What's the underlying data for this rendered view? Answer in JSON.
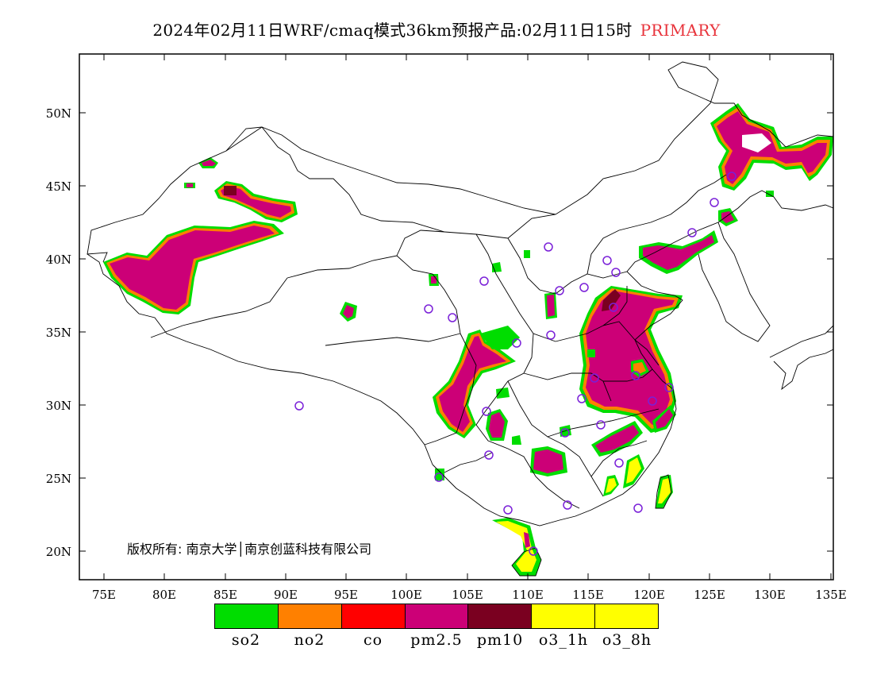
{
  "header": {
    "title": "2024年02月11日WRF/cmaq模式36km预报产品:02月11日15时",
    "primary_label": "PRIMARY"
  },
  "map": {
    "copyright": "版权所有: 南京大学│南京创蓝科技有限公司",
    "lon_ticks": [
      "75E",
      "80E",
      "85E",
      "90E",
      "95E",
      "100E",
      "105E",
      "110E",
      "115E",
      "120E",
      "125E",
      "130E",
      "135E"
    ],
    "lat_ticks": [
      "20N",
      "25N",
      "30N",
      "35N",
      "40N",
      "45N",
      "50N"
    ],
    "colors": {
      "frame": "#000000",
      "boundary": "#000000",
      "pollution_fill": "#cc0077",
      "pollution_edge_orange": "#ff8000",
      "pollution_edge_green": "#00dd00",
      "pm10_dark": "#7a0020",
      "station_circle": "#7a20d8"
    }
  },
  "legend": {
    "items": [
      {
        "label": "so2",
        "color": "#00dd00"
      },
      {
        "label": "no2",
        "color": "#ff8000"
      },
      {
        "label": "co",
        "color": "#ff0000"
      },
      {
        "label": "pm2.5",
        "color": "#cc0077"
      },
      {
        "label": "pm10",
        "color": "#7a0020"
      },
      {
        "label": "o3_1h",
        "color": "#ffff00"
      },
      {
        "label": "o3_8h",
        "color": "#ffff00"
      }
    ]
  }
}
